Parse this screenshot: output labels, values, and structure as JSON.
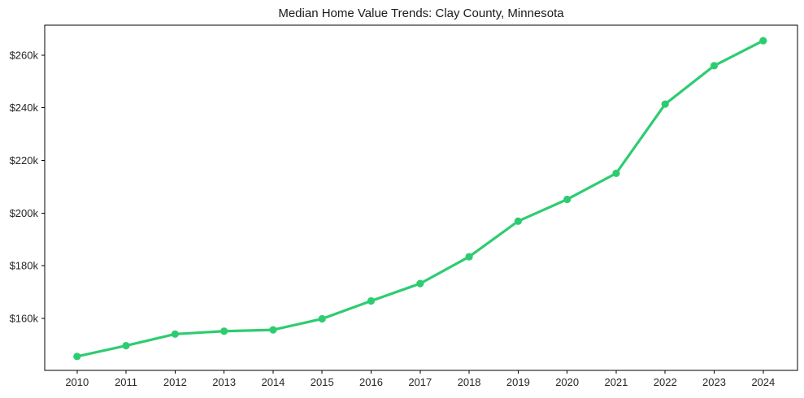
{
  "figure": {
    "title": "Median Home Value Trends: Clay County, Minnesota"
  },
  "chart_data": {
    "type": "line",
    "title": "Median Home Value Trends: Clay County, Minnesota",
    "xlabel": "",
    "ylabel": "",
    "grid": false,
    "legend": null,
    "x": [
      2010,
      2011,
      2012,
      2013,
      2014,
      2015,
      2016,
      2017,
      2018,
      2019,
      2020,
      2021,
      2022,
      2023,
      2024
    ],
    "x_tick_labels": [
      "2010",
      "2011",
      "2012",
      "2013",
      "2014",
      "2015",
      "2016",
      "2017",
      "2018",
      "2019",
      "2020",
      "2021",
      "2022",
      "2023",
      "2024"
    ],
    "values": [
      145500,
      149600,
      154000,
      155100,
      155600,
      159800,
      166600,
      173200,
      183400,
      196900,
      205200,
      215100,
      241400,
      256000,
      265500
    ],
    "y_ticks": [
      {
        "value": 160000,
        "label": "$160k"
      },
      {
        "value": 180000,
        "label": "$180k"
      },
      {
        "value": 200000,
        "label": "$200k"
      },
      {
        "value": 220000,
        "label": "$220k"
      },
      {
        "value": 240000,
        "label": "$240k"
      },
      {
        "value": 260000,
        "label": "$260k"
      }
    ],
    "xlim": [
      2009.34,
      2024.7
    ],
    "ylim": [
      140200,
      271400
    ],
    "line_width": 3.2,
    "marker": "circle",
    "marker_radius": 4.6,
    "colors": {
      "line": "#2ecc71",
      "axis": "#000000",
      "tick_text": "#262626",
      "title_text": "#1a1a1a",
      "background": "#ffffff"
    }
  }
}
